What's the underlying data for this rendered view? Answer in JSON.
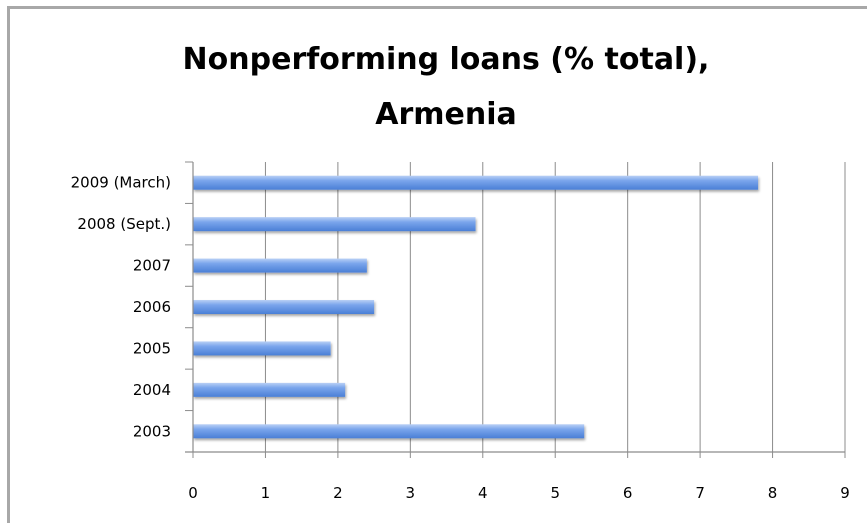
{
  "chart_data": {
    "type": "bar",
    "orientation": "horizontal",
    "title_lines": [
      "Nonperforming loans (% total),",
      "Armenia"
    ],
    "categories": [
      "2009 (March)",
      "2008 (Sept.)",
      "2007",
      "2006",
      "2005",
      "2004",
      "2003"
    ],
    "values": [
      7.8,
      3.9,
      2.4,
      2.5,
      1.9,
      2.1,
      5.4
    ],
    "xticks": [
      "0",
      "1",
      "2",
      "3",
      "4",
      "5",
      "6",
      "7",
      "8",
      "9"
    ],
    "xlim": [
      0,
      9
    ],
    "grid": true,
    "legend": "none",
    "bar_color": "#5b8fe0"
  }
}
